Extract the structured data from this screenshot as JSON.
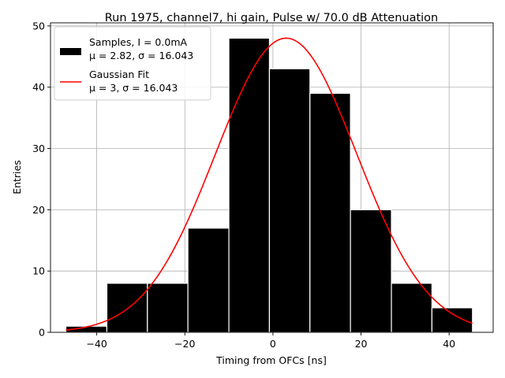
{
  "chart_data": {
    "type": "bar",
    "title": "Run 1975, channel7, hi gain, Pulse w/ 70.0 dB Attenuation",
    "xlabel": "Timing from OFCs [ns]",
    "ylabel": "Entries",
    "xlim": [
      -50.5,
      50.0
    ],
    "ylim": [
      0,
      50.5
    ],
    "xticks": [
      -40,
      -20,
      0,
      20,
      40
    ],
    "xtick_labels": [
      "−40",
      "−20",
      "0",
      "20",
      "40"
    ],
    "yticks": [
      0,
      10,
      20,
      30,
      40,
      50
    ],
    "ytick_labels": [
      "0",
      "10",
      "20",
      "30",
      "40",
      "50"
    ],
    "grid": true,
    "legend_position": "top-left",
    "histogram": {
      "name": "Samples, I = 0.0mA",
      "stats_label": "μ = 2.82, σ = 16.043",
      "color": "#000000",
      "bin_edges": [
        -47.0,
        -37.7,
        -28.5,
        -19.3,
        -10.0,
        -0.8,
        8.4,
        17.6,
        26.9,
        36.1,
        45.3
      ],
      "values": [
        1,
        8,
        8,
        17,
        48,
        43,
        39,
        20,
        8,
        4
      ]
    },
    "fit": {
      "name": "Gaussian Fit",
      "stats_label": "μ = 3, σ = 16.043",
      "color": "#ff0000",
      "mu": 3,
      "sigma": 16.043,
      "amplitude": 48,
      "x_range": [
        -47.0,
        45.3
      ]
    }
  }
}
